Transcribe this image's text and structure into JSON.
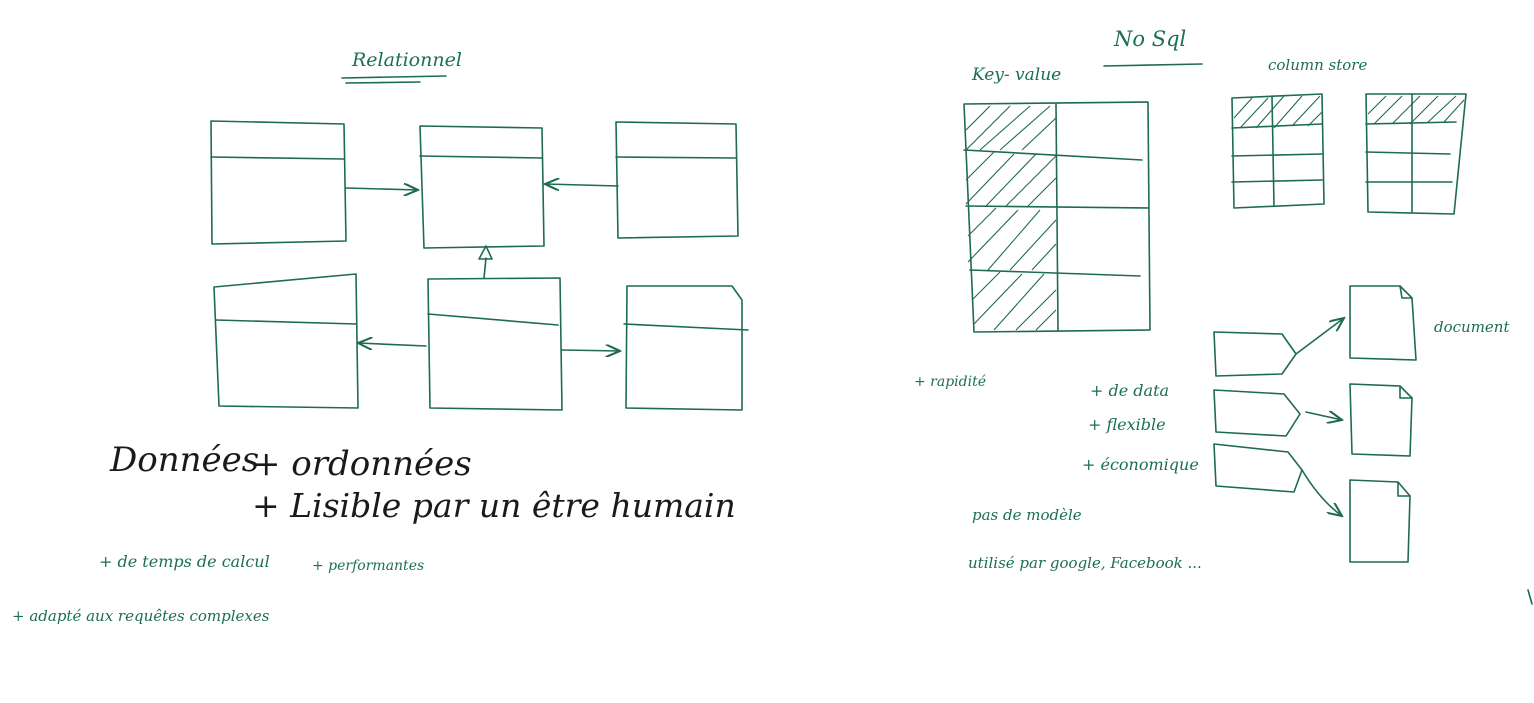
{
  "relational": {
    "title": "Relationnel",
    "pros_main": {
      "line1_a": "Données",
      "line1_b": "+ ordonnées",
      "line2": "+ Lisible par un être humain"
    },
    "pros_small": [
      "+ de temps de calcul",
      "+ performantes",
      "+ adapté aux requêtes complexes"
    ]
  },
  "nosql": {
    "title": "No Sql",
    "key_value": {
      "label": "Key- value",
      "pro": "+ rapidité"
    },
    "column_store": {
      "label": "column store"
    },
    "document": {
      "label": "document"
    },
    "pros": [
      "+ de data",
      "+ flexible",
      "+ économique"
    ],
    "notes": [
      "pas de modèle",
      "utilisé par google, Facebook ..."
    ]
  },
  "colors": {
    "ink_green": "#1d6b55",
    "ink_black": "#1a1a1a",
    "board": "#ffffff"
  }
}
